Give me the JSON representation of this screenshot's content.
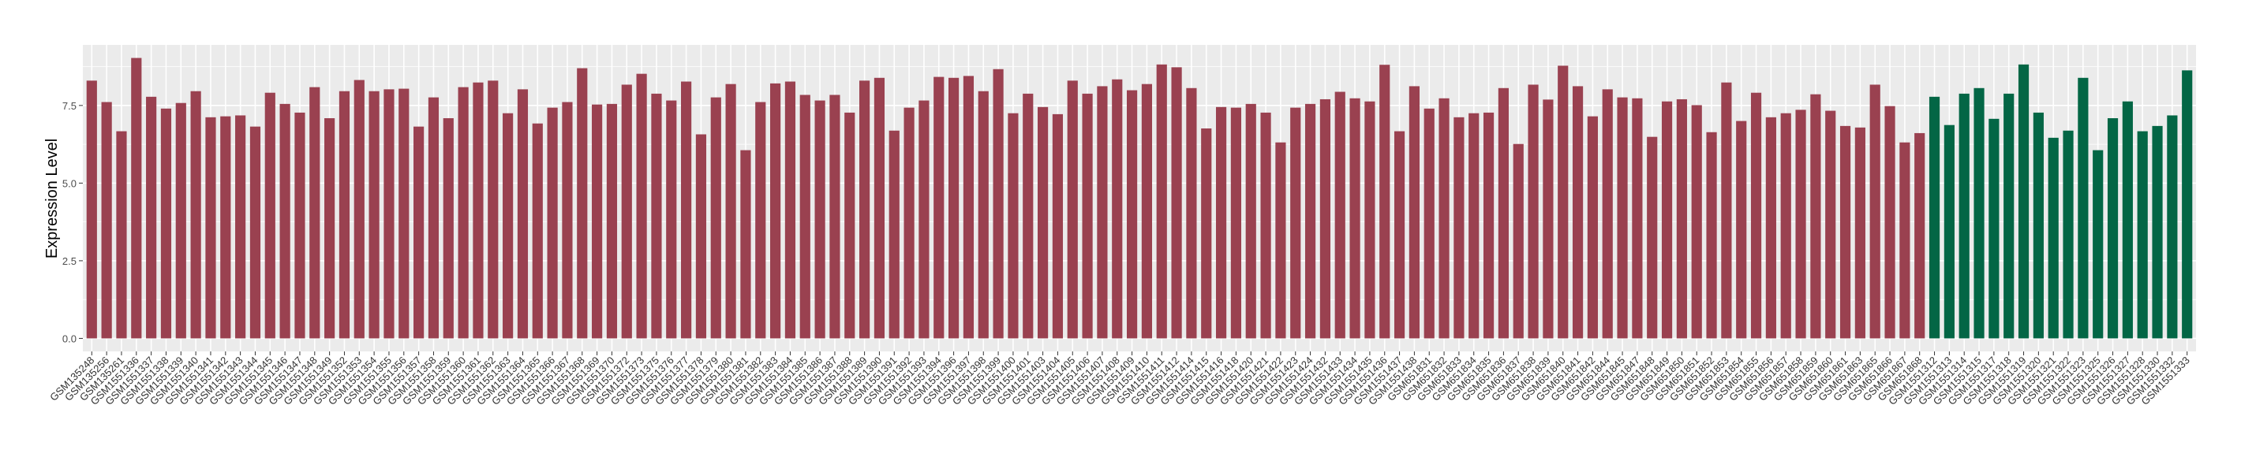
{
  "chart_data": {
    "type": "bar",
    "title": "",
    "xlabel": "",
    "ylabel": "Expression Level",
    "ylim": [
      -0.42,
      9.45
    ],
    "yticks": [
      "0.0",
      "2.5",
      "5.0",
      "7.5"
    ],
    "grid": true,
    "legend": "none",
    "colors": {
      "group1": "#9A4150",
      "group2": "#036645",
      "panel": "#EBEBEB",
      "grid": "#FFFFFF"
    },
    "categories": [
      "GSM135248",
      "GSM135256",
      "GSM135261",
      "GSM1551336",
      "GSM1551337",
      "GSM1551338",
      "GSM1551339",
      "GSM1551340",
      "GSM1551341",
      "GSM1551342",
      "GSM1551343",
      "GSM1551344",
      "GSM1551345",
      "GSM1551346",
      "GSM1551347",
      "GSM1551348",
      "GSM1551349",
      "GSM1551352",
      "GSM1551353",
      "GSM1551354",
      "GSM1551355",
      "GSM1551356",
      "GSM1551357",
      "GSM1551358",
      "GSM1551359",
      "GSM1551360",
      "GSM1551361",
      "GSM1551362",
      "GSM1551363",
      "GSM1551364",
      "GSM1551365",
      "GSM1551366",
      "GSM1551367",
      "GSM1551368",
      "GSM1551369",
      "GSM1551370",
      "GSM1551372",
      "GSM1551373",
      "GSM1551375",
      "GSM1551376",
      "GSM1551377",
      "GSM1551378",
      "GSM1551379",
      "GSM1551380",
      "GSM1551381",
      "GSM1551382",
      "GSM1551383",
      "GSM1551384",
      "GSM1551385",
      "GSM1551386",
      "GSM1551387",
      "GSM1551388",
      "GSM1551389",
      "GSM1551390",
      "GSM1551391",
      "GSM1551392",
      "GSM1551393",
      "GSM1551394",
      "GSM1551396",
      "GSM1551397",
      "GSM1551398",
      "GSM1551399",
      "GSM1551400",
      "GSM1551401",
      "GSM1551403",
      "GSM1551404",
      "GSM1551405",
      "GSM1551406",
      "GSM1551407",
      "GSM1551408",
      "GSM1551409",
      "GSM1551410",
      "GSM1551411",
      "GSM1551412",
      "GSM1551414",
      "GSM1551415",
      "GSM1551416",
      "GSM1551418",
      "GSM1551420",
      "GSM1551421",
      "GSM1551422",
      "GSM1551423",
      "GSM1551424",
      "GSM1551432",
      "GSM1551433",
      "GSM1551434",
      "GSM1551435",
      "GSM1551436",
      "GSM1551437",
      "GSM1551438",
      "GSM651831",
      "GSM651832",
      "GSM651833",
      "GSM651834",
      "GSM651835",
      "GSM651836",
      "GSM651837",
      "GSM651838",
      "GSM651839",
      "GSM651840",
      "GSM651841",
      "GSM651842",
      "GSM651844",
      "GSM651845",
      "GSM651847",
      "GSM651848",
      "GSM651849",
      "GSM651850",
      "GSM651851",
      "GSM651852",
      "GSM651853",
      "GSM651854",
      "GSM651855",
      "GSM651856",
      "GSM651857",
      "GSM651858",
      "GSM651859",
      "GSM651860",
      "GSM651861",
      "GSM651863",
      "GSM651865",
      "GSM651866",
      "GSM651867",
      "GSM651868",
      "GSM1551312",
      "GSM1551313",
      "GSM1551314",
      "GSM1551315",
      "GSM1551317",
      "GSM1551318",
      "GSM1551319",
      "GSM1551320",
      "GSM1551321",
      "GSM1551322",
      "GSM1551323",
      "GSM1551325",
      "GSM1551326",
      "GSM1551327",
      "GSM1551328",
      "GSM1551330",
      "GSM1551332",
      "GSM1551333"
    ],
    "values": [
      8.3,
      7.61,
      6.67,
      9.03,
      7.78,
      7.4,
      7.58,
      7.96,
      7.12,
      7.15,
      7.18,
      6.82,
      7.91,
      7.55,
      7.27,
      8.09,
      7.09,
      7.96,
      8.32,
      7.96,
      8.02,
      8.04,
      6.82,
      7.76,
      7.09,
      8.09,
      8.24,
      8.3,
      7.25,
      8.02,
      6.92,
      7.43,
      7.61,
      8.7,
      7.53,
      7.55,
      8.17,
      8.52,
      7.88,
      7.66,
      8.27,
      6.57,
      7.76,
      8.19,
      6.06,
      7.61,
      8.21,
      8.27,
      7.84,
      7.66,
      7.84,
      7.27,
      8.3,
      8.39,
      6.69,
      7.43,
      7.66,
      8.42,
      8.39,
      8.45,
      7.96,
      8.67,
      7.25,
      7.88,
      7.45,
      7.22,
      8.3,
      7.88,
      8.12,
      8.34,
      7.99,
      8.19,
      8.82,
      8.73,
      8.06,
      6.76,
      7.45,
      7.43,
      7.55,
      7.27,
      6.31,
      7.43,
      7.55,
      7.7,
      7.94,
      7.73,
      7.63,
      8.81,
      6.67,
      8.12,
      7.4,
      7.73,
      7.12,
      7.25,
      7.27,
      8.06,
      6.26,
      8.17,
      7.69,
      8.78,
      8.12,
      7.15,
      8.02,
      7.76,
      7.73,
      6.49,
      7.63,
      7.7,
      7.51,
      6.64,
      8.24,
      7.0,
      7.91,
      7.12,
      7.25,
      7.36,
      7.86,
      7.33,
      6.84,
      6.79,
      8.17,
      7.48,
      6.31,
      6.61,
      7.78,
      6.87,
      7.88,
      8.06,
      7.07,
      7.88,
      8.82,
      7.27,
      6.46,
      6.69,
      8.39,
      6.06,
      7.09,
      7.63,
      6.67,
      6.84,
      7.18,
      8.63
    ],
    "groups": [
      "group1",
      "group1",
      "group1",
      "group1",
      "group1",
      "group1",
      "group1",
      "group1",
      "group1",
      "group1",
      "group1",
      "group1",
      "group1",
      "group1",
      "group1",
      "group1",
      "group1",
      "group1",
      "group1",
      "group1",
      "group1",
      "group1",
      "group1",
      "group1",
      "group1",
      "group1",
      "group1",
      "group1",
      "group1",
      "group1",
      "group1",
      "group1",
      "group1",
      "group1",
      "group1",
      "group1",
      "group1",
      "group1",
      "group1",
      "group1",
      "group1",
      "group1",
      "group1",
      "group1",
      "group1",
      "group1",
      "group1",
      "group1",
      "group1",
      "group1",
      "group1",
      "group1",
      "group1",
      "group1",
      "group1",
      "group1",
      "group1",
      "group1",
      "group1",
      "group1",
      "group1",
      "group1",
      "group1",
      "group1",
      "group1",
      "group1",
      "group1",
      "group1",
      "group1",
      "group1",
      "group1",
      "group1",
      "group1",
      "group1",
      "group1",
      "group1",
      "group1",
      "group1",
      "group1",
      "group1",
      "group1",
      "group1",
      "group1",
      "group1",
      "group1",
      "group1",
      "group1",
      "group1",
      "group1",
      "group1",
      "group1",
      "group1",
      "group1",
      "group1",
      "group1",
      "group1",
      "group1",
      "group1",
      "group1",
      "group1",
      "group1",
      "group1",
      "group1",
      "group1",
      "group1",
      "group1",
      "group1",
      "group1",
      "group1",
      "group1",
      "group1",
      "group1",
      "group1",
      "group1",
      "group1",
      "group1",
      "group1",
      "group1",
      "group1",
      "group1",
      "group1",
      "group1",
      "group1",
      "group1",
      "group2",
      "group2",
      "group2",
      "group2",
      "group2",
      "group2",
      "group2",
      "group2",
      "group2",
      "group2",
      "group2",
      "group2",
      "group2",
      "group2",
      "group2",
      "group2",
      "group2",
      "group2"
    ]
  }
}
